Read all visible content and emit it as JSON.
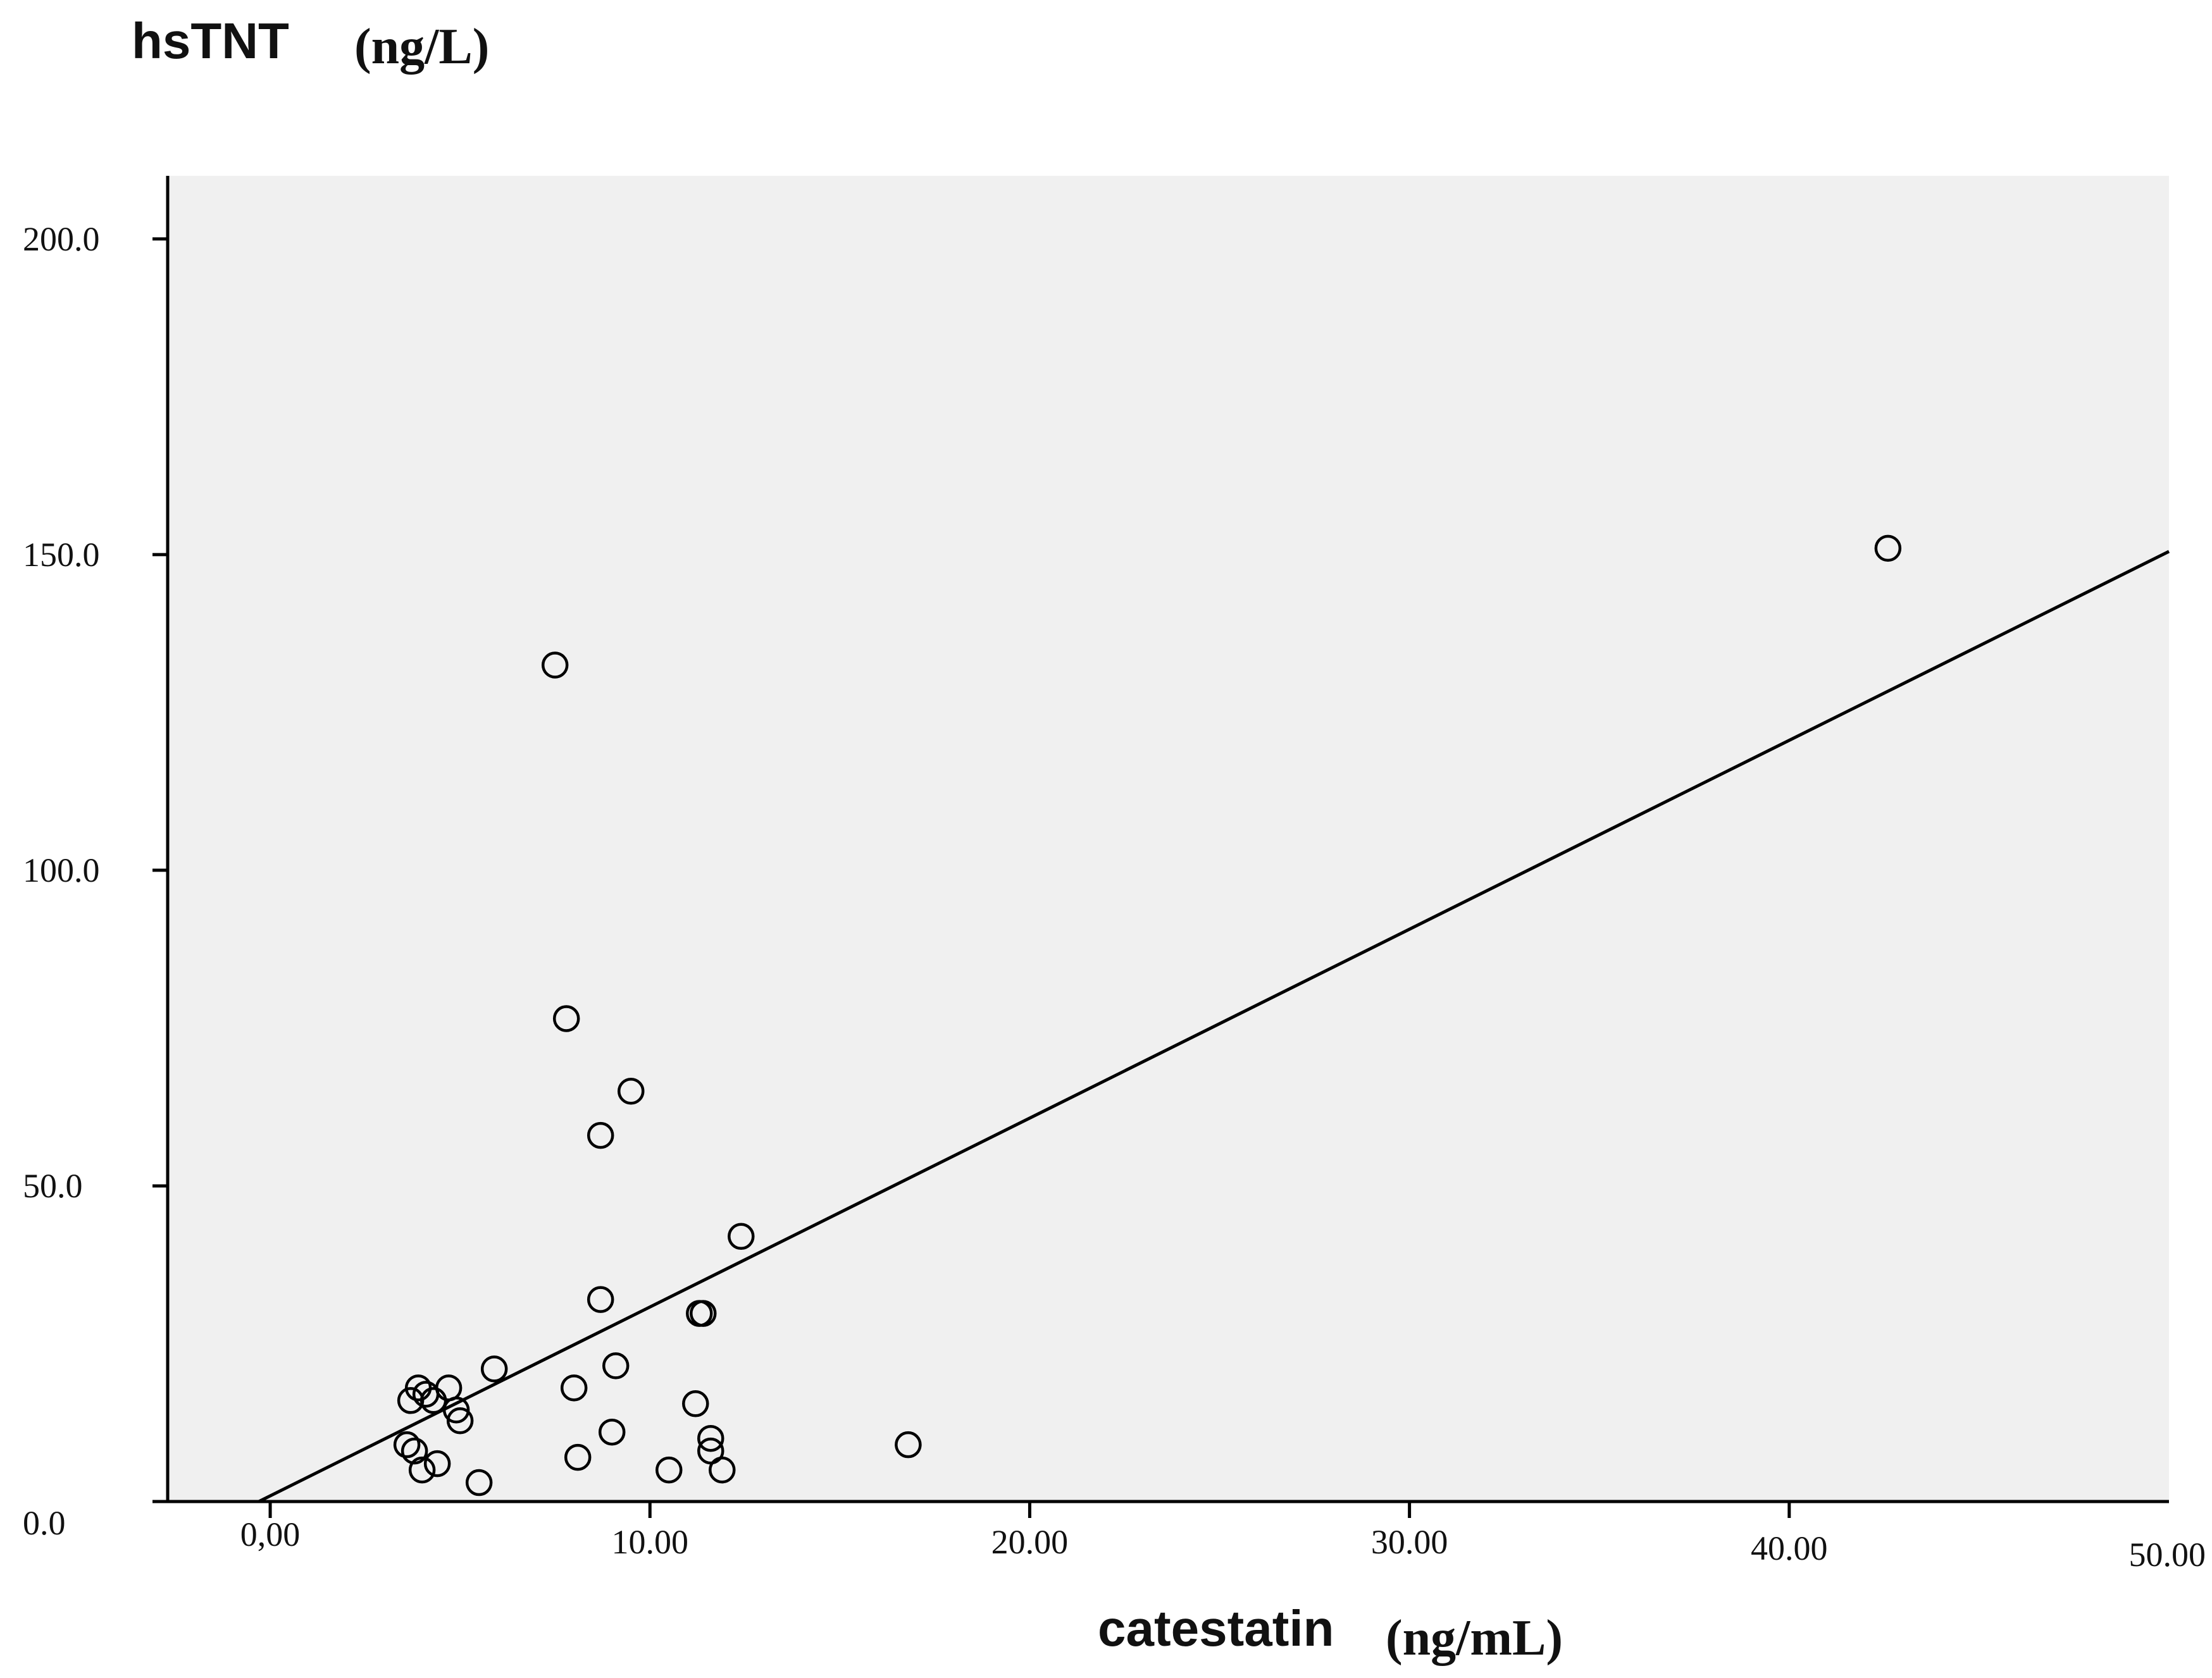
{
  "chart_data": {
    "type": "scatter",
    "title": "",
    "xlabel": "catestatin",
    "xlabel_unit": "(ng/mL)",
    "ylabel": "hsTNT",
    "ylabel_unit": "(ng/L)",
    "xlim": [
      -2.7,
      50
    ],
    "ylim": [
      0,
      210
    ],
    "x_ticks": [
      0,
      10,
      20,
      30,
      40,
      50
    ],
    "x_tick_labels": [
      "0,00",
      "10.00",
      "20.00",
      "30.00",
      "40.00",
      "50.00"
    ],
    "y_ticks": [
      0,
      50,
      100,
      150,
      200
    ],
    "y_tick_labels": [
      "0.0",
      "50.0",
      "100.0",
      "150.0",
      "200.0"
    ],
    "grid": false,
    "plot_background": "#f0f0f0",
    "marker": "open-circle",
    "points": [
      {
        "x": 3.7,
        "y": 16.0
      },
      {
        "x": 3.9,
        "y": 18.0
      },
      {
        "x": 4.1,
        "y": 17.0
      },
      {
        "x": 4.3,
        "y": 16.0
      },
      {
        "x": 4.7,
        "y": 18.0
      },
      {
        "x": 4.9,
        "y": 14.5
      },
      {
        "x": 5.0,
        "y": 12.8
      },
      {
        "x": 5.9,
        "y": 21.0
      },
      {
        "x": 3.6,
        "y": 9.0
      },
      {
        "x": 3.8,
        "y": 8.0
      },
      {
        "x": 4.0,
        "y": 5.0
      },
      {
        "x": 4.4,
        "y": 6.0
      },
      {
        "x": 5.5,
        "y": 3.0
      },
      {
        "x": 7.5,
        "y": 132.5
      },
      {
        "x": 7.8,
        "y": 76.5
      },
      {
        "x": 8.0,
        "y": 18.0
      },
      {
        "x": 8.1,
        "y": 7.0
      },
      {
        "x": 8.7,
        "y": 58.0
      },
      {
        "x": 8.7,
        "y": 32.0
      },
      {
        "x": 9.0,
        "y": 11.0
      },
      {
        "x": 9.1,
        "y": 21.5
      },
      {
        "x": 9.5,
        "y": 65.0
      },
      {
        "x": 10.5,
        "y": 5.0
      },
      {
        "x": 11.2,
        "y": 15.5
      },
      {
        "x": 11.3,
        "y": 29.8
      },
      {
        "x": 11.4,
        "y": 29.8
      },
      {
        "x": 11.6,
        "y": 10.0
      },
      {
        "x": 11.6,
        "y": 8.0
      },
      {
        "x": 11.9,
        "y": 5.0
      },
      {
        "x": 12.4,
        "y": 42.0
      },
      {
        "x": 16.8,
        "y": 9.0
      },
      {
        "x": 42.6,
        "y": 151.0
      }
    ],
    "fit_line": {
      "x": [
        -0.3,
        50
      ],
      "y": [
        0,
        150.5
      ]
    }
  }
}
